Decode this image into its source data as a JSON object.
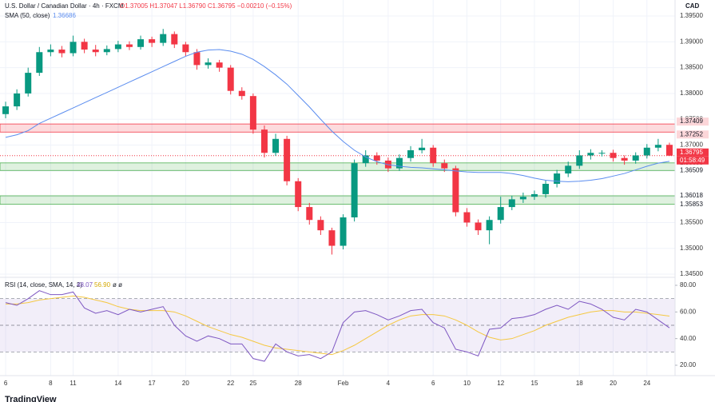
{
  "header": {
    "symbol": "U.S. Dollar / Canadian Dollar · 4h · FXCM",
    "ohlc": "O1.37005 H1.37047 L1.36790 C1.36795 −0.00210 (−0.15%)",
    "sma_label": "SMA (50, close)",
    "sma_value": "1.36686",
    "rsi_label": "RSI (14, close, SMA, 14, 2)",
    "rsi_value": "48.07",
    "rsi_sma_value": "56.90",
    "rsi_extra": "ø ø",
    "logo": "TradingView"
  },
  "chart_data": [
    {
      "type": "candlestick",
      "currency": "CAD",
      "grid": true,
      "up_color": "#089981",
      "down_color": "#f23645",
      "categories": [
        "6",
        null,
        null,
        null,
        "8",
        null,
        "11",
        null,
        null,
        null,
        "14",
        null,
        null,
        "17",
        null,
        null,
        "20",
        null,
        null,
        null,
        "22",
        null,
        "25",
        null,
        null,
        null,
        "28",
        null,
        null,
        null,
        "Feb",
        null,
        null,
        null,
        "4",
        null,
        null,
        null,
        "6",
        null,
        null,
        "10",
        null,
        null,
        "12",
        null,
        null,
        "15",
        null,
        null,
        null,
        "18",
        null,
        null,
        "20",
        null,
        null,
        "24",
        null,
        null
      ],
      "open": [
        1.376,
        1.3775,
        1.38,
        1.384,
        1.388,
        1.3885,
        1.3878,
        1.39,
        1.3885,
        1.388,
        1.3886,
        1.3895,
        1.389,
        1.3905,
        1.3898,
        1.3915,
        1.3895,
        1.388,
        1.3855,
        1.386,
        1.385,
        1.3805,
        1.3795,
        1.373,
        1.3685,
        1.3712,
        1.363,
        1.358,
        1.3555,
        1.3535,
        1.3505,
        1.356,
        1.3665,
        1.368,
        1.367,
        1.3655,
        1.3675,
        1.369,
        1.3695,
        1.3665,
        1.3655,
        1.357,
        1.355,
        1.3535,
        1.3555,
        1.358,
        1.3595,
        1.36,
        1.3605,
        1.3625,
        1.3645,
        1.366,
        1.368,
        1.3685,
        1.3685,
        1.3675,
        1.367,
        1.368,
        1.3695,
        1.37005
      ],
      "high": [
        1.3784,
        1.3808,
        1.385,
        1.389,
        1.3895,
        1.3892,
        1.3912,
        1.3906,
        1.3894,
        1.3893,
        1.3902,
        1.3901,
        1.3912,
        1.391,
        1.3925,
        1.392,
        1.39,
        1.3886,
        1.3868,
        1.3865,
        1.3855,
        1.3812,
        1.38,
        1.3738,
        1.3722,
        1.3718,
        1.3636,
        1.3588,
        1.3562,
        1.354,
        1.3566,
        1.3672,
        1.369,
        1.3686,
        1.3676,
        1.3682,
        1.3698,
        1.3712,
        1.37,
        1.3672,
        1.366,
        1.3578,
        1.3556,
        1.3562,
        1.36,
        1.3602,
        1.3608,
        1.3612,
        1.3632,
        1.3652,
        1.3668,
        1.369,
        1.3692,
        1.369,
        1.3691,
        1.368,
        1.3686,
        1.3702,
        1.3712,
        1.37047
      ],
      "low": [
        1.3752,
        1.3768,
        1.3794,
        1.3834,
        1.3872,
        1.387,
        1.3872,
        1.3878,
        1.3872,
        1.3874,
        1.388,
        1.3884,
        1.3885,
        1.389,
        1.3892,
        1.3888,
        1.3872,
        1.3846,
        1.3848,
        1.3842,
        1.3798,
        1.3788,
        1.3722,
        1.3676,
        1.3679,
        1.3622,
        1.3572,
        1.3546,
        1.3526,
        1.3488,
        1.3498,
        1.3552,
        1.3658,
        1.3662,
        1.3648,
        1.365,
        1.3668,
        1.3684,
        1.3658,
        1.3648,
        1.3562,
        1.3542,
        1.3526,
        1.3508,
        1.3548,
        1.3574,
        1.3588,
        1.3594,
        1.3598,
        1.3618,
        1.3638,
        1.3654,
        1.3672,
        1.3678,
        1.3668,
        1.3662,
        1.3664,
        1.3674,
        1.3688,
        1.3679
      ],
      "close": [
        1.3775,
        1.38,
        1.384,
        1.388,
        1.3885,
        1.3878,
        1.39,
        1.3885,
        1.388,
        1.3886,
        1.3895,
        1.389,
        1.3905,
        1.3898,
        1.3915,
        1.3895,
        1.388,
        1.3855,
        1.386,
        1.385,
        1.3805,
        1.3795,
        1.373,
        1.3685,
        1.3712,
        1.363,
        1.358,
        1.3555,
        1.3535,
        1.3505,
        1.356,
        1.3665,
        1.368,
        1.367,
        1.3655,
        1.3675,
        1.369,
        1.3695,
        1.3665,
        1.3655,
        1.357,
        1.355,
        1.3535,
        1.3555,
        1.358,
        1.3595,
        1.36,
        1.3605,
        1.3625,
        1.3645,
        1.366,
        1.368,
        1.3685,
        1.3685,
        1.3675,
        1.367,
        1.368,
        1.3695,
        1.37005,
        1.36795
      ],
      "sma": {
        "name": "SMA (50, close)",
        "color": "#5b8def",
        "values": [
          1.3715,
          1.372,
          1.3728,
          1.3742,
          1.3752,
          1.3762,
          1.3772,
          1.3782,
          1.3792,
          1.3802,
          1.3812,
          1.3822,
          1.3832,
          1.3842,
          1.3852,
          1.3862,
          1.3872,
          1.388,
          1.3884,
          1.3885,
          1.3882,
          1.3876,
          1.3866,
          1.3852,
          1.3836,
          1.3818,
          1.3796,
          1.3774,
          1.375,
          1.3727,
          1.3707,
          1.369,
          1.3677,
          1.3668,
          1.3662,
          1.3659,
          1.3657,
          1.3656,
          1.3654,
          1.3652,
          1.365,
          1.3648,
          1.3647,
          1.3647,
          1.3647,
          1.3645,
          1.3641,
          1.3636,
          1.3632,
          1.363,
          1.3629,
          1.363,
          1.3632,
          1.3635,
          1.364,
          1.3645,
          1.3652,
          1.3659,
          1.3665,
          1.36686
        ]
      },
      "zones": [
        {
          "top": 1.37409,
          "bottom": 1.37252,
          "color": "#f23645"
        },
        {
          "top": 1.36655,
          "bottom": 1.36509,
          "color": "#4caf50"
        },
        {
          "top": 1.36018,
          "bottom": 1.35853,
          "color": "#4caf50"
        }
      ],
      "last_price": 1.36795,
      "countdown": "01:58:49",
      "ylim": [
        1.3447,
        1.3981
      ],
      "yticks": [
        {
          "value": 1.395,
          "label": "1.39500"
        },
        {
          "value": 1.39,
          "label": "1.39000"
        },
        {
          "value": 1.385,
          "label": "1.38500"
        },
        {
          "value": 1.38,
          "label": "1.38000"
        },
        {
          "value": 1.375,
          "label": "1.37500"
        },
        {
          "value": 1.37,
          "label": "1.37000"
        },
        {
          "value": 1.365,
          "label": "1.36500"
        },
        {
          "value": 1.36,
          "label": "1.36000"
        },
        {
          "value": 1.355,
          "label": "1.35500"
        },
        {
          "value": 1.35,
          "label": "1.35000"
        },
        {
          "value": 1.345,
          "label": "1.34500"
        }
      ]
    },
    {
      "type": "line",
      "grid": true,
      "levels": [
        70,
        50,
        30
      ],
      "band_color": "#7e57c2",
      "series": [
        {
          "name": "RSI",
          "color": "#7e57c2",
          "values": [
            67,
            65,
            70,
            76,
            73,
            73,
            75,
            63,
            59,
            61,
            58,
            62,
            60,
            62,
            64,
            50,
            42,
            38,
            42,
            40,
            36,
            36,
            25,
            23,
            36,
            30,
            27,
            28,
            25,
            30,
            52,
            60,
            61,
            58,
            54,
            57,
            61,
            62,
            52,
            48,
            32,
            30,
            27,
            47,
            48,
            55,
            56,
            58,
            62,
            65,
            62,
            68,
            66,
            62,
            56,
            54,
            62,
            60,
            54,
            48.07
          ]
        },
        {
          "name": "RSI SMA",
          "color": "#f5c842",
          "values": [
            66,
            66,
            67,
            69,
            70,
            71,
            72,
            71,
            69,
            67,
            64,
            62,
            61,
            61,
            61,
            60,
            57,
            53,
            49,
            46,
            43,
            41,
            38,
            35,
            33,
            32,
            31,
            30,
            29,
            28,
            31,
            35,
            40,
            45,
            50,
            54,
            57,
            58,
            58,
            57,
            54,
            50,
            45,
            41,
            39,
            40,
            43,
            46,
            50,
            53,
            56,
            58,
            60,
            61,
            61,
            60,
            60,
            59,
            58,
            56.9
          ]
        }
      ],
      "ylim": [
        12.2,
        84.2
      ],
      "yticks": [
        {
          "value": 80,
          "label": "80.00"
        },
        {
          "value": 60,
          "label": "60.00"
        },
        {
          "value": 40,
          "label": "40.00"
        },
        {
          "value": 20,
          "label": "20.00"
        }
      ]
    }
  ]
}
